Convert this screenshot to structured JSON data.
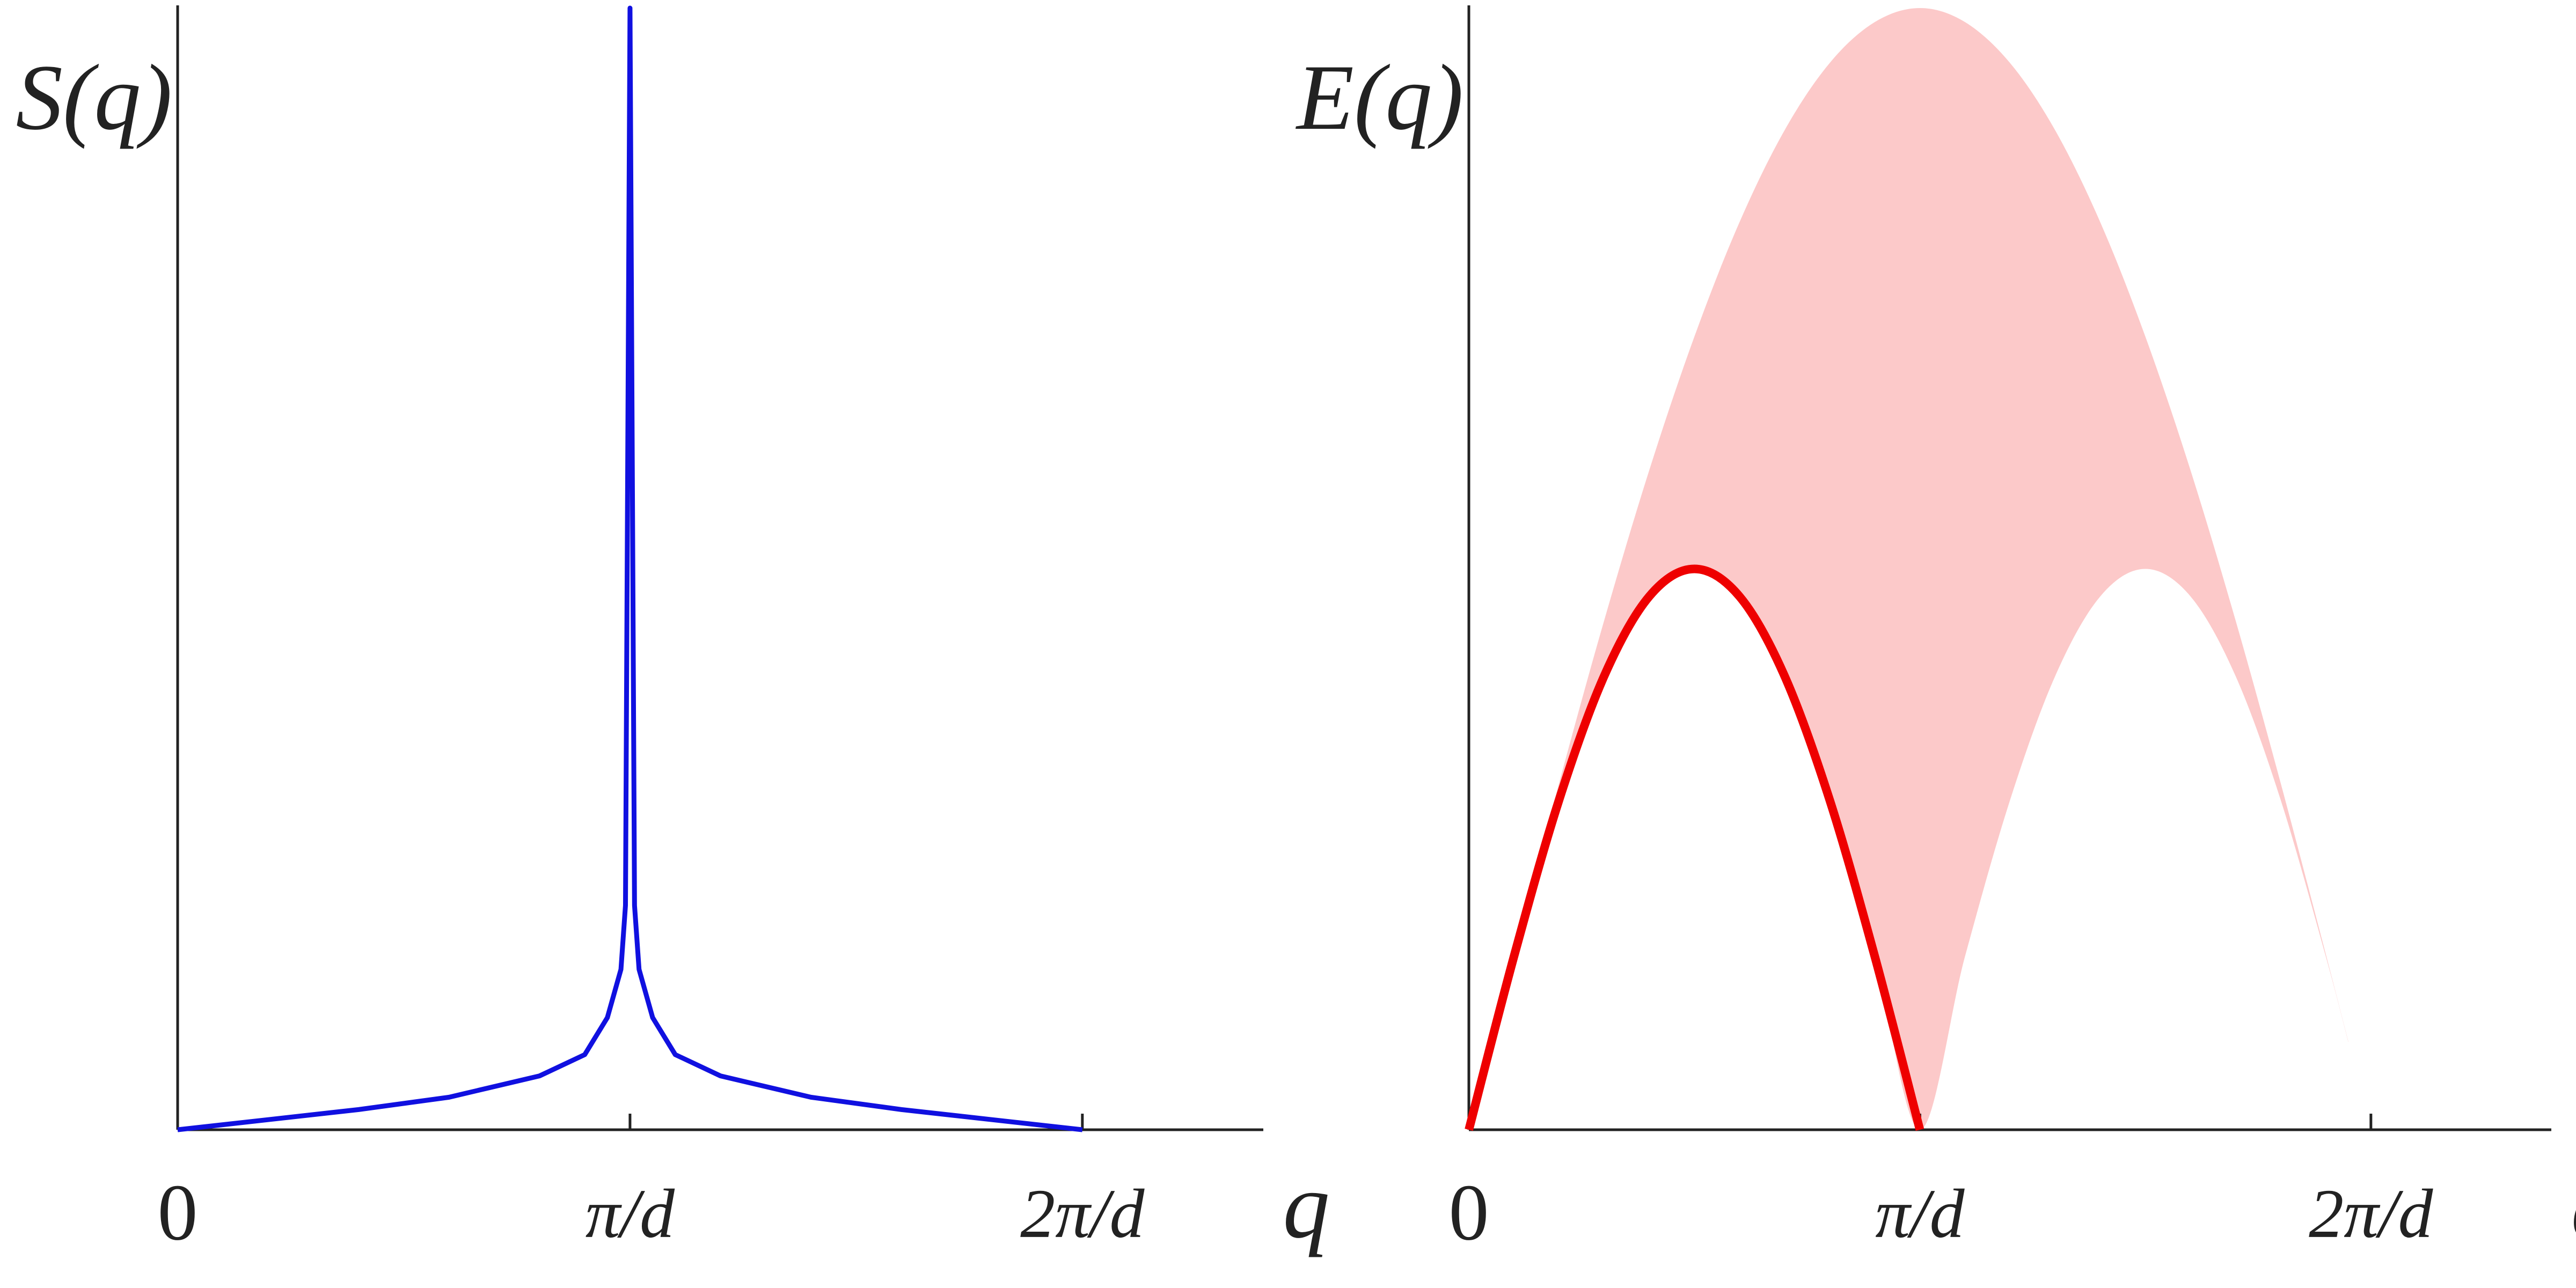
{
  "chart_data": [
    {
      "type": "line",
      "ylabel": "S(q)",
      "xlabel": "q",
      "xlim": [
        0,
        2.4
      ],
      "ylim": [
        0,
        10
      ],
      "xticks": [
        0,
        {
          "value": 1,
          "label": "π/d"
        },
        {
          "value": 2,
          "label": "2π/d"
        }
      ],
      "series": [
        {
          "color": "#1010e0",
          "x": [
            0,
            0.2,
            0.4,
            0.6,
            0.8,
            0.9,
            0.95,
            0.98,
            0.99,
            1,
            1.01,
            1.02,
            1.05,
            1.1,
            1.2,
            1.4,
            1.6,
            1.8,
            2
          ],
          "values": [
            0,
            0.09,
            0.18,
            0.29,
            0.48,
            0.67,
            1.0,
            1.43,
            2.0,
            10,
            2.0,
            1.43,
            1.0,
            0.67,
            0.48,
            0.29,
            0.18,
            0.09,
            0
          ]
        }
      ]
    },
    {
      "type": "line",
      "ylabel": "E(q)",
      "xlabel": "q",
      "xlim": [
        0,
        2.4
      ],
      "ylim": [
        0,
        2
      ],
      "xticks": [
        0,
        {
          "value": 1,
          "label": "π/d"
        },
        {
          "value": 2,
          "label": "2π/d"
        }
      ],
      "band": {
        "color": "#fcc9c9",
        "x": [
          0,
          0.1,
          0.2,
          0.3,
          0.4,
          0.5,
          0.6,
          0.7,
          0.8,
          0.9,
          1,
          1.1,
          1.2,
          1.3,
          1.4,
          1.5,
          1.6,
          1.7,
          1.8,
          1.9,
          1.95
        ],
        "lower": [
          0,
          0.309,
          0.588,
          0.809,
          0.951,
          1,
          0.951,
          0.809,
          0.588,
          0.309,
          0,
          0.309,
          0.588,
          0.809,
          0.951,
          1,
          0.951,
          0.809,
          0.588,
          0.309,
          0.156
        ],
        "upper": [
          0,
          0.313,
          0.618,
          0.908,
          1.176,
          1.414,
          1.618,
          1.782,
          1.902,
          1.975,
          2,
          1.975,
          1.902,
          1.782,
          1.618,
          1.414,
          1.176,
          0.908,
          0.618,
          0.313,
          0.157
        ]
      },
      "series": [
        {
          "color": "#ee0000",
          "x": [
            0,
            0.1,
            0.2,
            0.3,
            0.4,
            0.5,
            0.6,
            0.7,
            0.8,
            0.9,
            1
          ],
          "values": [
            0,
            0.309,
            0.588,
            0.809,
            0.951,
            1,
            0.951,
            0.809,
            0.588,
            0.309,
            0
          ]
        }
      ]
    }
  ]
}
